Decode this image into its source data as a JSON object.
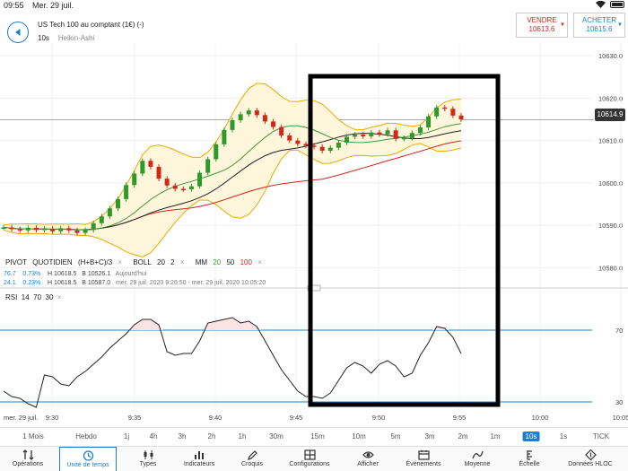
{
  "status": {
    "time": "09:55",
    "date": "Mer. 29 juil."
  },
  "header": {
    "instrument": "US Tech 100 au comptant (1€) (-)",
    "timeframe": "10s",
    "chart_style": "Heikin-Ashi",
    "sell": {
      "label": "VENDRE",
      "price": "10613.6"
    },
    "buy": {
      "label": "ACHETER",
      "price": "10615.6"
    }
  },
  "indicators": {
    "pivot": "PIVOT",
    "pivot_mode": "QUOTIDIEN",
    "pivot_formula": "(H+B+C)/3",
    "boll": "BOLL",
    "boll_p1": "20",
    "boll_p2": "2",
    "mm": "MM",
    "mm20": "20",
    "mm50": "50",
    "mm100": "100",
    "close_glyph": "×",
    "row1": {
      "a": "76.7",
      "b": "0.73%",
      "h": "H 10618.5",
      "bv": "B 10526.1",
      "note": "Aujourd'hui"
    },
    "row2": {
      "a": "24.1",
      "b": "0.23%",
      "h": "H 10618.5",
      "bv": "B 10587.0",
      "note": "mer. 29 juil. 2020 9:26:50 - mer. 29 juil. 2020 10:05:20"
    },
    "rsi": "RSI",
    "rsi_p": "14",
    "rsi_hi": "70",
    "rsi_lo": "30"
  },
  "price_axis": [
    "10630.0",
    "10620.0",
    "10610.0",
    "10600.0",
    "10590.0",
    "10580.0"
  ],
  "last_price": "10614.9",
  "rsi_axis": [
    "70",
    "30"
  ],
  "time_axis": [
    "mer. 29 juil.",
    "9:30",
    "9:35",
    "9:40",
    "9:45",
    "9:50",
    "9:55",
    "10:00",
    "10:05"
  ],
  "timeframes": [
    "1 Mois",
    "Hebdo",
    "1j",
    "4h",
    "3h",
    "2h",
    "1h",
    "30m",
    "15m",
    "10m",
    "5m",
    "3m",
    "2m",
    "1m",
    "10s",
    "1s",
    "TICK"
  ],
  "active_timeframe": "10s",
  "toolbar": [
    {
      "label": "Opérations",
      "icon": "arrows-icon"
    },
    {
      "label": "Unité de temps",
      "icon": "clock-icon"
    },
    {
      "label": "Types",
      "icon": "candles-icon"
    },
    {
      "label": "Indicateurs",
      "icon": "bars-icon"
    },
    {
      "label": "Croquis",
      "icon": "pen-icon"
    },
    {
      "label": "Configurations",
      "icon": "grid-icon"
    },
    {
      "label": "Afficher",
      "icon": "eye-icon"
    },
    {
      "label": "Événements",
      "icon": "calendar-icon"
    },
    {
      "label": "Moyenne",
      "icon": "average-icon"
    },
    {
      "label": "Échelle",
      "icon": "scale-icon"
    },
    {
      "label": "Données HLOC",
      "icon": "hloc-icon"
    }
  ],
  "colors": {
    "accent": "#1a7fd0",
    "up": "#2e9a2e",
    "down": "#d0281a",
    "boll": "#f0a800",
    "mm20": "#3a9a3a",
    "mm50": "#222222",
    "mm100": "#d0281a"
  },
  "chart_data": {
    "type": "line",
    "x_labels": [
      "9:30",
      "9:35",
      "9:40",
      "9:45",
      "9:50",
      "9:55",
      "10:00",
      "10:05"
    ],
    "ylim": [
      10575,
      10633
    ],
    "price_close": [
      10589.5,
      10589.1,
      10588.8,
      10589.4,
      10588.9,
      10589.2,
      10588.6,
      10589.3,
      10588.8,
      10588.2,
      10588.9,
      10590.5,
      10592.1,
      10594.0,
      10596.2,
      10599.5,
      10602.2,
      10605.2,
      10603.8,
      10601.0,
      10599.4,
      10598.6,
      10598.5,
      10599.2,
      10602.4,
      10605.6,
      10609.1,
      10612.5,
      10614.8,
      10616.2,
      10617.1,
      10616.0,
      10614.5,
      10613.2,
      10611.2,
      10610.0,
      10609.2,
      10608.8,
      10608.5,
      10607.6,
      10608.3,
      10609.5,
      10610.9,
      10611.4,
      10611.0,
      10611.9,
      10611.5,
      10612.4,
      10610.4,
      10610.6,
      10611.8,
      10613.1,
      10615.7,
      10617.8,
      10617.5,
      10615.9,
      10615.0
    ],
    "rsi": [
      36,
      33,
      32,
      29,
      27,
      45,
      44,
      40,
      39,
      44,
      47,
      51,
      55,
      60,
      64,
      68,
      73,
      76,
      76,
      73,
      58,
      56,
      57,
      57,
      64,
      74,
      75,
      76,
      77,
      74,
      75,
      72,
      64,
      56,
      48,
      42,
      36,
      33,
      33,
      32,
      35,
      42,
      49,
      52,
      50,
      46,
      51,
      53,
      50,
      44,
      46,
      56,
      63,
      72,
      71,
      66,
      57
    ],
    "rsi_ylim": [
      25,
      85
    ],
    "rsi_levels": [
      70,
      30
    ]
  }
}
